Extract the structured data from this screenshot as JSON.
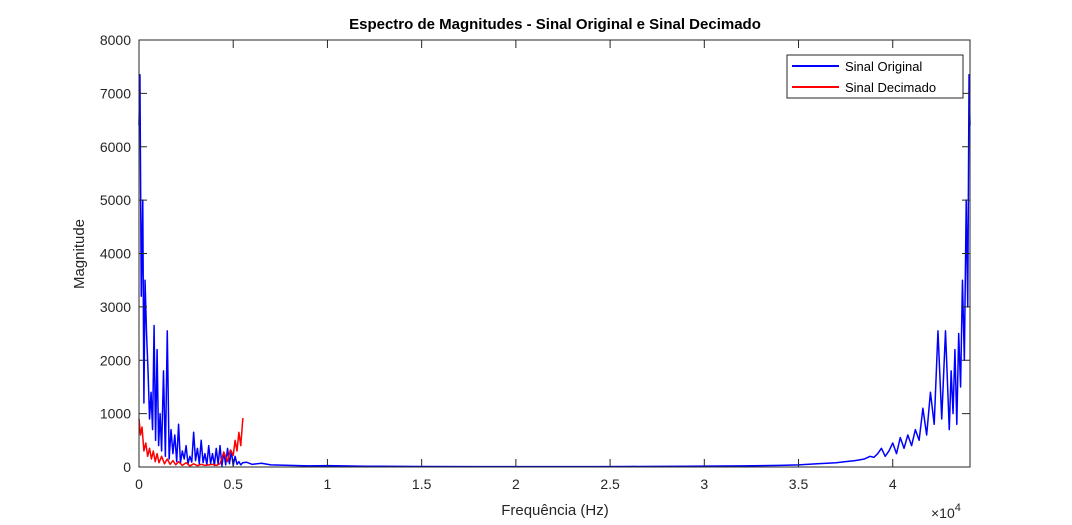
{
  "chart_data": {
    "type": "line",
    "title": "Espectro de Magnitudes - Sinal Original e Sinal Decimado",
    "xlabel": "Frequência (Hz)",
    "ylabel": "Magnitude",
    "x_multiplier_label": "×10",
    "x_multiplier_exponent": "4",
    "xlim": [
      0,
      44100
    ],
    "ylim": [
      0,
      8000
    ],
    "x_tick_values": [
      0,
      5000,
      10000,
      15000,
      20000,
      25000,
      30000,
      35000,
      40000
    ],
    "x_tick_labels": [
      "0",
      "0.5",
      "1",
      "1.5",
      "2",
      "2.5",
      "3",
      "3.5",
      "4"
    ],
    "y_tick_values": [
      0,
      1000,
      2000,
      3000,
      4000,
      5000,
      6000,
      7000,
      8000
    ],
    "y_tick_labels": [
      "0",
      "1000",
      "2000",
      "3000",
      "4000",
      "5000",
      "6000",
      "7000",
      "8000"
    ],
    "grid": false,
    "legend_position": "top-right",
    "series": [
      {
        "name": "Sinal Original",
        "color": "#0000ff",
        "x": [
          0,
          50,
          120,
          200,
          260,
          320,
          400,
          480,
          560,
          640,
          720,
          800,
          880,
          960,
          1040,
          1120,
          1200,
          1300,
          1400,
          1500,
          1600,
          1700,
          1800,
          1900,
          2000,
          2100,
          2200,
          2300,
          2400,
          2500,
          2600,
          2700,
          2800,
          2900,
          3000,
          3100,
          3200,
          3300,
          3400,
          3500,
          3600,
          3700,
          3800,
          3900,
          4000,
          4100,
          4200,
          4300,
          4400,
          4500,
          4600,
          4700,
          4800,
          4900,
          5000,
          5100,
          5200,
          5300,
          5400,
          5500,
          5700,
          6000,
          6500,
          7000,
          8000,
          9000,
          10000,
          12000,
          15000,
          18000,
          20000,
          22050,
          24000,
          26000,
          29000,
          32000,
          34000,
          35000,
          36000,
          37000,
          37500,
          38000,
          38500,
          38800,
          39000,
          39200,
          39400,
          39600,
          39800,
          40000,
          40200,
          40400,
          40600,
          40800,
          41000,
          41200,
          41400,
          41600,
          41800,
          42000,
          42200,
          42400,
          42600,
          42800,
          43000,
          43100,
          43200,
          43300,
          43400,
          43500,
          43600,
          43700,
          43800,
          43900,
          43980,
          44050,
          44100
        ],
        "y": [
          6400,
          7350,
          3200,
          5000,
          1200,
          3500,
          2500,
          1800,
          900,
          1400,
          700,
          2650,
          500,
          2200,
          400,
          1000,
          300,
          1800,
          200,
          2550,
          150,
          700,
          250,
          600,
          100,
          800,
          80,
          300,
          150,
          400,
          60,
          200,
          90,
          650,
          120,
          350,
          60,
          500,
          80,
          250,
          40,
          400,
          60,
          250,
          30,
          350,
          50,
          400,
          20,
          280,
          40,
          350,
          60,
          300,
          30,
          200,
          50,
          100,
          40,
          80,
          90,
          50,
          70,
          40,
          30,
          20,
          25,
          15,
          10,
          8,
          8,
          6,
          8,
          10,
          15,
          20,
          30,
          40,
          60,
          80,
          100,
          120,
          150,
          200,
          180,
          250,
          350,
          200,
          300,
          450,
          250,
          550,
          350,
          600,
          400,
          700,
          500,
          1100,
          600,
          1400,
          800,
          2550,
          900,
          2550,
          700,
          1800,
          1000,
          2200,
          800,
          2500,
          1500,
          3500,
          2000,
          5000,
          3000,
          7350,
          6400
        ]
      },
      {
        "name": "Sinal Decimado",
        "color": "#ff0000",
        "x": [
          0,
          80,
          160,
          260,
          360,
          460,
          560,
          660,
          760,
          860,
          960,
          1060,
          1200,
          1350,
          1500,
          1650,
          1800,
          1950,
          2100,
          2300,
          2500,
          2700,
          2900,
          3100,
          3300,
          3500,
          3700,
          3900,
          4100,
          4300,
          4500,
          4700,
          4850,
          5000,
          5100,
          5200,
          5300,
          5400,
          5512
        ],
        "y": [
          900,
          600,
          750,
          300,
          450,
          200,
          350,
          150,
          300,
          100,
          250,
          80,
          200,
          60,
          150,
          50,
          120,
          40,
          100,
          30,
          80,
          20,
          60,
          25,
          50,
          30,
          40,
          50,
          30,
          60,
          280,
          100,
          320,
          220,
          500,
          300,
          650,
          400,
          920
        ]
      }
    ]
  }
}
